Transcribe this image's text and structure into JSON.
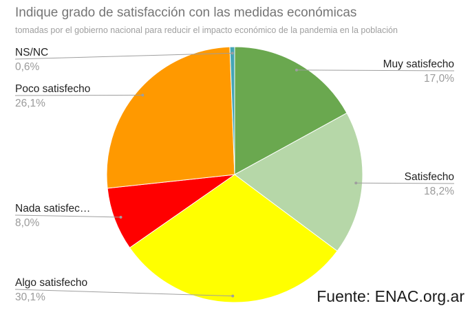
{
  "title": "Indique grado de satisfacción con las medidas económicas",
  "subtitle": "tomadas por el gobierno nacional para reducir el impacto económico de la pandemia en la población",
  "source": "Fuente: ENAC.org.ar",
  "chart_data": {
    "type": "pie",
    "title": "Indique grado de satisfacción con las medidas económicas",
    "subtitle": "tomadas por el gobierno nacional para reducir el impacto económico de la pandemia en la población",
    "legend": "labels on slices with leader lines",
    "slices": [
      {
        "label": "Muy satisfecho",
        "value": 17.0,
        "display": "17,0%",
        "color": "#6aa84f",
        "side": "right"
      },
      {
        "label": "Satisfecho",
        "value": 18.2,
        "display": "18,2%",
        "color": "#b6d7a8",
        "side": "right"
      },
      {
        "label": "Algo satisfecho",
        "value": 30.1,
        "display": "30,1%",
        "color": "#ffff00",
        "side": "left"
      },
      {
        "label": "Nada satisfec…",
        "value": 8.0,
        "display": "8,0%",
        "color": "#ff0000",
        "side": "left"
      },
      {
        "label": "Poco satisfecho",
        "value": 26.1,
        "display": "26,1%",
        "color": "#ff9900",
        "side": "left"
      },
      {
        "label": "NS/NC",
        "value": 0.6,
        "display": "0,6%",
        "color": "#45a5b5",
        "side": "left"
      }
    ]
  }
}
